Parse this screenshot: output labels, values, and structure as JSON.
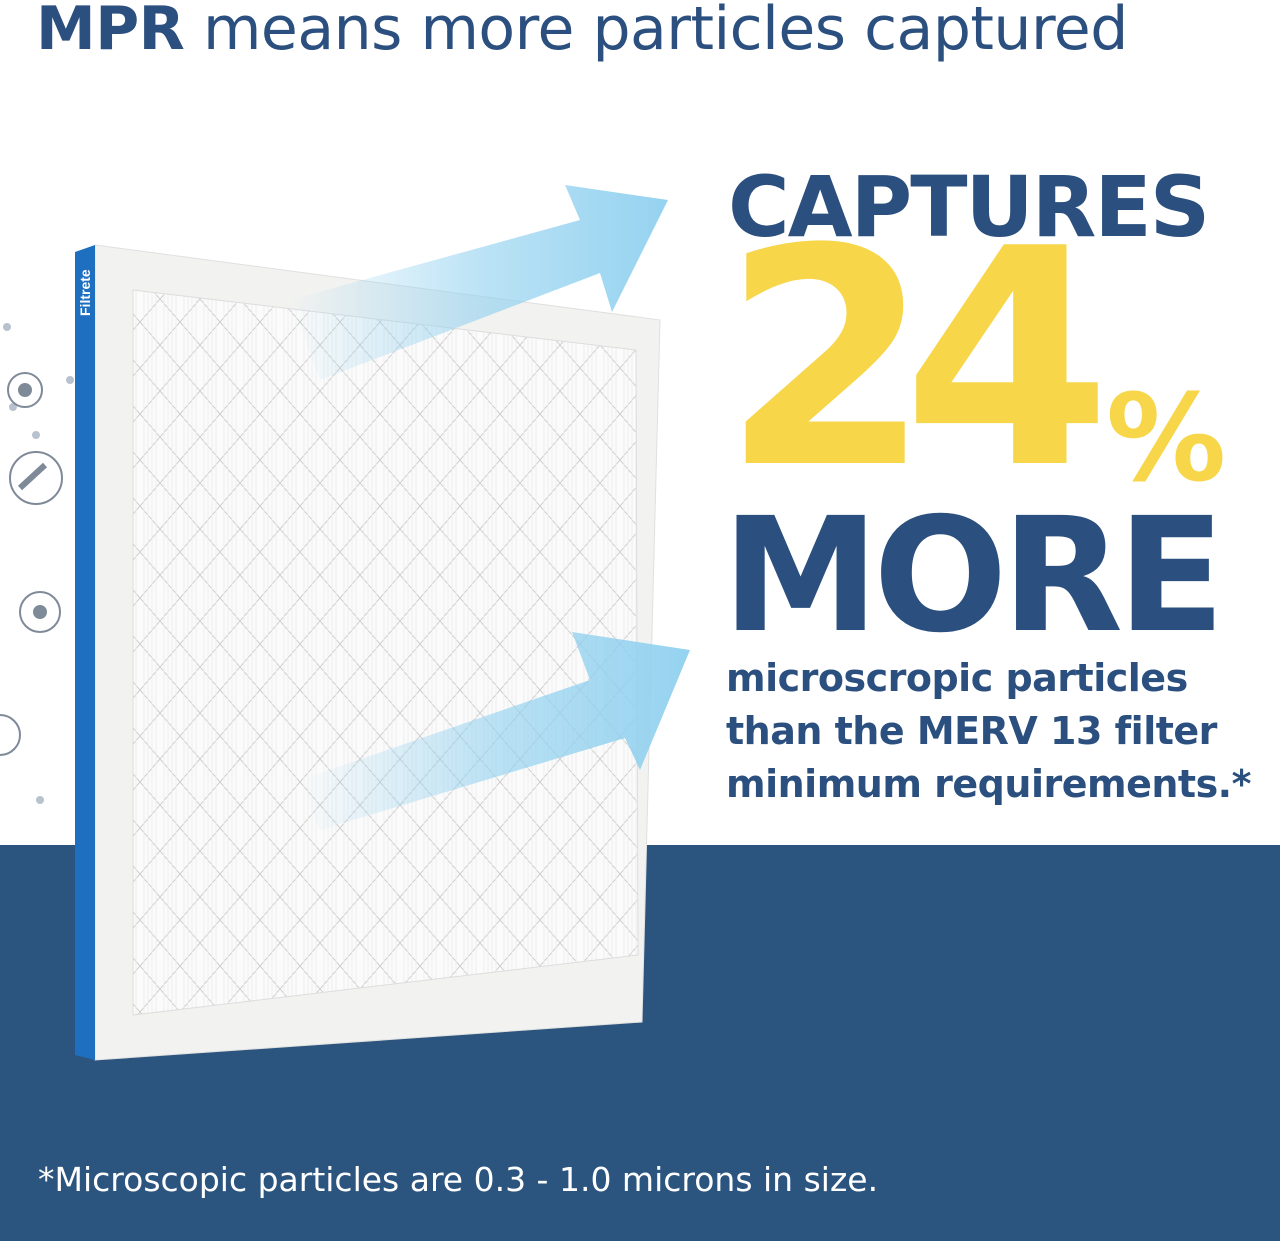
{
  "header": {
    "title_bold": "MPR",
    "title_rest": " means more particles captured"
  },
  "headline": {
    "captures": "CAPTURES",
    "number": "24",
    "percent": "%",
    "more": "MORE"
  },
  "description": [
    "microscropic particles",
    "than the MERV 13 filter",
    "minimum requirements.*"
  ],
  "footnote": "*Microscopic particles are 0.3 - 1.0 microns in size.",
  "product": {
    "brand": "Filtrete"
  },
  "icons": [
    "particle-icon",
    "dust-sprinkle-icon",
    "particle-icon",
    "pet-dander-icon"
  ],
  "colors": {
    "navy": "#2b547e",
    "text_navy": "#2b4f7e",
    "yellow": "#f7d64a",
    "arrow": "#8fd0ef",
    "filter_edge": "#1e6fc0"
  }
}
